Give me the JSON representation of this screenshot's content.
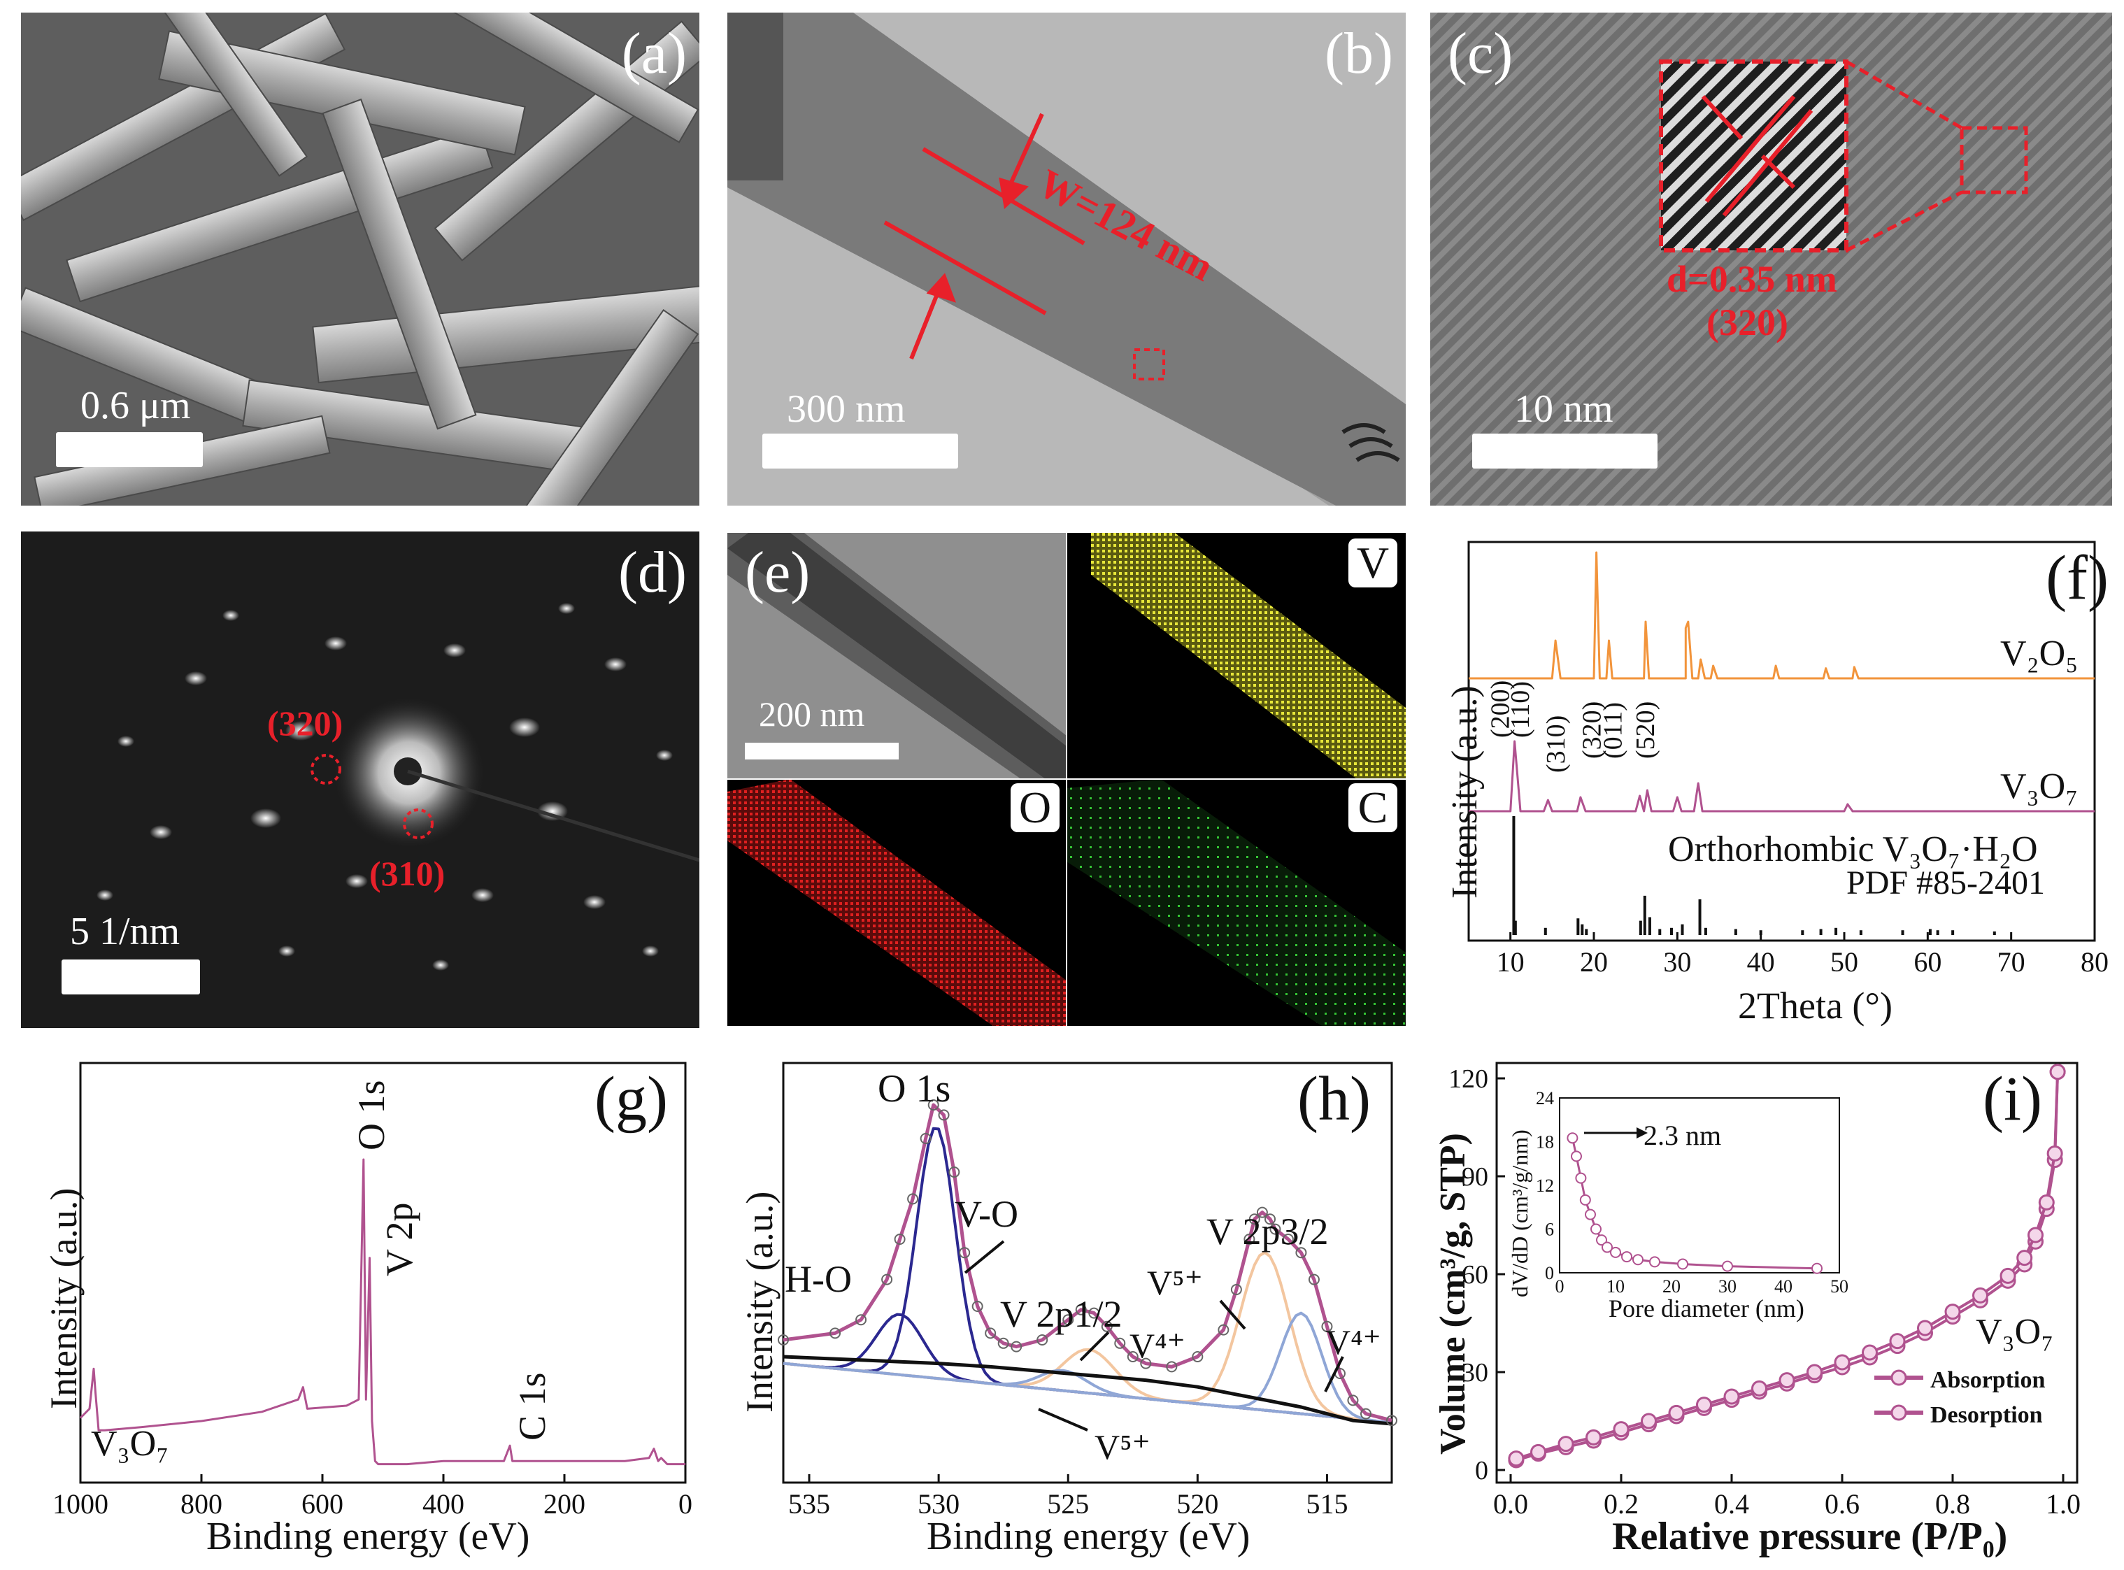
{
  "panels": {
    "a": {
      "letter": "(a)",
      "scale": "0.6 μm"
    },
    "b": {
      "letter": "(b)",
      "scale": "300 nm",
      "annotation": "W=124 nm"
    },
    "c": {
      "letter": "(c)",
      "scale": "10 nm",
      "d_spacing": "d=0.35 nm",
      "plane": "(320)"
    },
    "d": {
      "letter": "(d)",
      "scale": "5 1/nm",
      "spot1": "(320)",
      "spot2": "(310)"
    },
    "e": {
      "letter": "(e)",
      "scale": "200 nm",
      "map_v": "V",
      "map_o": "O",
      "map_c": "C"
    }
  },
  "colors": {
    "orange": "#f2943b",
    "purple": "#b0528f",
    "red": "#e8202a",
    "navy": "#2b2890",
    "blue": "#8fa6d6",
    "peach": "#f3c69f",
    "black": "#111111"
  },
  "chart_data": [
    {
      "id": "f",
      "type": "line",
      "letter": "(f)",
      "xlabel": "2Theta (°)",
      "ylabel": "Intensity (a.u.)",
      "xlim": [
        5,
        80
      ],
      "xticks": [
        10,
        20,
        30,
        40,
        50,
        60,
        70,
        80
      ],
      "series": [
        {
          "name": "V₂O₅",
          "x": [
            5,
            15,
            15.4,
            16,
            20,
            20.3,
            20.7,
            21.5,
            21.8,
            22.2,
            26,
            26.2,
            26.6,
            31,
            31,
            31.3,
            31.8,
            32.5,
            32.8,
            33.3,
            34,
            34.3,
            34.8,
            41.5,
            41.8,
            42.2,
            47.5,
            47.8,
            48.2,
            51,
            51.2,
            51.7,
            80
          ],
          "y": [
            0,
            0,
            3,
            0,
            0,
            10,
            0,
            0,
            3,
            0,
            0,
            4.5,
            0,
            0,
            4,
            4.5,
            0,
            0,
            1.5,
            0,
            0,
            1,
            0,
            0,
            1,
            0,
            0,
            0.8,
            0,
            0,
            0.9,
            0,
            0
          ]
        },
        {
          "name": "V₃O₇",
          "x": [
            5,
            10,
            10.5,
            11.2,
            14,
            14.5,
            15,
            18,
            18.4,
            19,
            25,
            25.5,
            26,
            26.4,
            26.9,
            29.5,
            30,
            30.5,
            32,
            32.5,
            33,
            50,
            50.4,
            51,
            80
          ],
          "y": [
            0,
            0,
            5,
            0,
            0,
            0.8,
            0,
            0,
            1,
            0,
            0,
            1.1,
            0,
            1.5,
            0,
            0,
            1,
            0,
            0,
            2,
            0,
            0,
            0.5,
            0,
            0
          ]
        }
      ],
      "peak_labels": [
        "(200)",
        "(110)",
        "(310)",
        "(320)",
        "(011)",
        "(520)"
      ],
      "series_labels": {
        "v2o5": "V₂O₅",
        "v3o7": "V₃O₇"
      },
      "reference": {
        "title": "Orthorhombic V₃O₇·H₂O",
        "pdf": "PDF #85-2401",
        "x": [
          10.4,
          10.6,
          14.2,
          18.1,
          18.6,
          19.1,
          25.6,
          26.1,
          26.7,
          27.9,
          29.3,
          30.6,
          32.7,
          33.4,
          37.0,
          40.0,
          45.0,
          47.2,
          49.0,
          52.0,
          57.0,
          60.3,
          61.2,
          63.0,
          68.0
        ],
        "h": [
          1.0,
          0.12,
          0.06,
          0.14,
          0.09,
          0.05,
          0.12,
          0.33,
          0.15,
          0.05,
          0.06,
          0.09,
          0.3,
          0.06,
          0.05,
          0.04,
          0.04,
          0.05,
          0.06,
          0.04,
          0.04,
          0.05,
          0.04,
          0.04,
          0.03
        ]
      }
    },
    {
      "id": "g",
      "type": "line",
      "letter": "(g)",
      "xlabel": "Binding energy (eV)",
      "ylabel": "Intensity (a.u.)",
      "xlim": [
        1000,
        0
      ],
      "xticks": [
        1000,
        800,
        600,
        400,
        200,
        0
      ],
      "series": [
        {
          "name": "V₃O₇",
          "x": [
            1000,
            985,
            978,
            975,
            970,
            960,
            900,
            800,
            700,
            640,
            632,
            625,
            560,
            540,
            532,
            528,
            522,
            518,
            513,
            508,
            460,
            400,
            300,
            290,
            286,
            280,
            200,
            100,
            60,
            52,
            45,
            40,
            30,
            10,
            0
          ],
          "y": [
            0.16,
            0.19,
            0.32,
            0.24,
            0.12,
            0.12,
            0.13,
            0.15,
            0.18,
            0.22,
            0.26,
            0.19,
            0.2,
            0.22,
            1.0,
            0.22,
            0.68,
            0.15,
            0.02,
            0.01,
            0.01,
            0.02,
            0.02,
            0.07,
            0.02,
            0.02,
            0.02,
            0.02,
            0.03,
            0.06,
            0.02,
            0.03,
            0.01,
            0.01,
            0.01
          ]
        }
      ],
      "peak_labels": [
        "O 1s",
        "V 2p",
        "C 1s"
      ],
      "sample": "V₃O₇"
    },
    {
      "id": "h",
      "type": "line",
      "letter": "(h)",
      "xlabel": "Binding energy (eV)",
      "ylabel": "Intensity (a.u.)",
      "xlim": [
        536,
        512.5
      ],
      "xticks": [
        535,
        530,
        525,
        520,
        515
      ],
      "series": [
        {
          "name": "envelope",
          "x": [
            536,
            534,
            533,
            532,
            531.5,
            531,
            530.5,
            530.2,
            529.8,
            529.4,
            529,
            528.5,
            528,
            527.5,
            527,
            526,
            525,
            524.5,
            524,
            523.5,
            523,
            522.5,
            522,
            521,
            520,
            519,
            518.5,
            518,
            517.8,
            517.5,
            517.2,
            517,
            516.5,
            516,
            515.5,
            515,
            514.5,
            514,
            513.5,
            512.5
          ],
          "y": [
            0.3,
            0.32,
            0.36,
            0.48,
            0.6,
            0.72,
            0.9,
            1.0,
            0.97,
            0.8,
            0.56,
            0.4,
            0.32,
            0.29,
            0.28,
            0.3,
            0.36,
            0.39,
            0.38,
            0.34,
            0.29,
            0.25,
            0.23,
            0.22,
            0.25,
            0.33,
            0.45,
            0.6,
            0.66,
            0.68,
            0.66,
            0.63,
            0.6,
            0.56,
            0.48,
            0.34,
            0.2,
            0.12,
            0.08,
            0.06
          ]
        },
        {
          "name": "background",
          "x": [
            536,
            533,
            530,
            528,
            525,
            522,
            520,
            518,
            516,
            515,
            514,
            512.5
          ],
          "y": [
            0.25,
            0.24,
            0.23,
            0.22,
            0.2,
            0.18,
            0.16,
            0.13,
            0.1,
            0.08,
            0.06,
            0.05
          ]
        }
      ],
      "labels": [
        "O 1s",
        "V-O",
        "H-O",
        "V 2p1/2",
        "V⁴⁺",
        "V⁵⁺",
        "V 2p3/2",
        "V⁵⁺",
        "V⁴⁺"
      ]
    },
    {
      "id": "i",
      "type": "line",
      "letter": "(i)",
      "xlabel": "Relative pressure (P/P₀)",
      "ylabel": "Volume (cm³/g, STP)",
      "xlim": [
        0.0,
        1.0
      ],
      "ylim": [
        0,
        120
      ],
      "xticks": [
        0.0,
        0.2,
        0.4,
        0.6,
        0.8,
        1.0
      ],
      "yticks": [
        0,
        30,
        60,
        90,
        120
      ],
      "series": [
        {
          "name": "Absorption",
          "x": [
            0.01,
            0.05,
            0.1,
            0.15,
            0.2,
            0.25,
            0.3,
            0.35,
            0.4,
            0.45,
            0.5,
            0.55,
            0.6,
            0.65,
            0.7,
            0.75,
            0.8,
            0.85,
            0.9,
            0.93,
            0.95,
            0.97,
            0.985,
            0.99
          ],
          "y": [
            3,
            5,
            7,
            9,
            11.5,
            14,
            16.5,
            19,
            21.5,
            24,
            26.5,
            29,
            31.5,
            34.5,
            38,
            42,
            47,
            52,
            58,
            63,
            70,
            80,
            95,
            122
          ]
        },
        {
          "name": "Desorption",
          "x": [
            0.01,
            0.05,
            0.1,
            0.15,
            0.2,
            0.25,
            0.3,
            0.35,
            0.4,
            0.45,
            0.5,
            0.55,
            0.6,
            0.65,
            0.7,
            0.75,
            0.8,
            0.85,
            0.9,
            0.93,
            0.95,
            0.97,
            0.985,
            0.99
          ],
          "y": [
            3.5,
            5.5,
            8,
            10,
            12.5,
            15,
            17.5,
            20,
            22.5,
            25,
            27.5,
            30,
            33,
            36,
            39.5,
            43.5,
            48.5,
            53.5,
            59.5,
            65,
            72,
            82,
            97,
            122
          ]
        }
      ],
      "sample": "V₃O₇",
      "legend": [
        "Absorption",
        "Desorption"
      ],
      "inset": {
        "xlabel": "Pore diameter (nm)",
        "ylabel": "dV/dD (cm³/g/nm)",
        "xlim": [
          0,
          50
        ],
        "ylim": [
          0,
          24
        ],
        "xticks": [
          0,
          10,
          20,
          30,
          40,
          50
        ],
        "yticks": [
          0,
          6,
          12,
          18,
          24
        ],
        "annotation": "2.3 nm",
        "x": [
          2.3,
          3,
          3.8,
          4.6,
          5.5,
          6.5,
          7.5,
          8.5,
          10,
          12,
          14,
          17,
          22,
          30,
          46
        ],
        "y": [
          18.5,
          16,
          13,
          10,
          8,
          6,
          4.5,
          3.5,
          2.8,
          2.2,
          1.8,
          1.5,
          1.2,
          0.9,
          0.6
        ]
      }
    }
  ]
}
